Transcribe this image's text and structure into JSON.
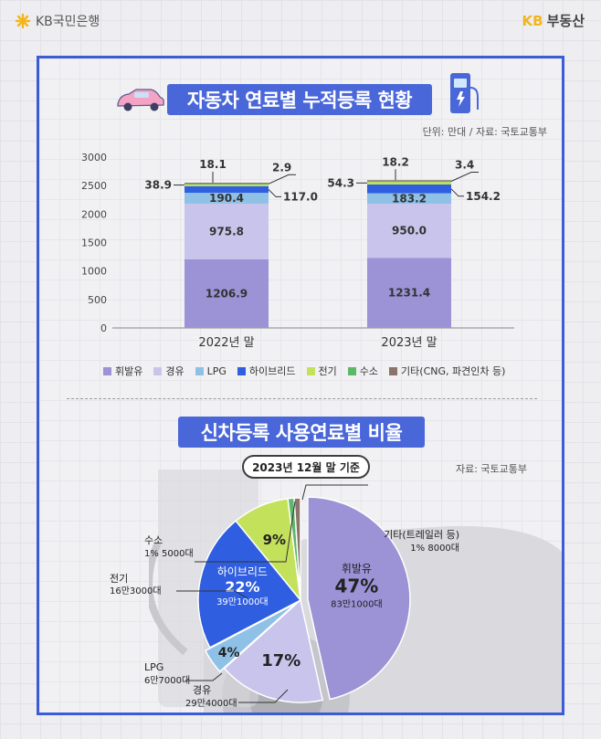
{
  "header": {
    "left_brand": "KB국민은행",
    "right_brand_kb": "KB",
    "right_brand_name": "부동산"
  },
  "colors": {
    "gasoline": "#9b93d6",
    "diesel": "#c9c4ec",
    "lpg": "#8fc1e6",
    "hybrid": "#2f5ee0",
    "electric": "#c4e15c",
    "hydrogen": "#5db86a",
    "other": "#8b7469",
    "accent": "#4a67d9"
  },
  "chart_data": [
    {
      "type": "bar",
      "title": "자동차 연료별 누적등록 현황",
      "unit_note": "단위: 만대 / 자료: 국토교통부",
      "categories": [
        "2022년 말",
        "2023년 말"
      ],
      "stacked": true,
      "ylim": [
        0,
        3000
      ],
      "yticks": [
        "0",
        "500",
        "1000",
        "1500",
        "2000",
        "2500",
        "3000"
      ],
      "grid": false,
      "legend_position": "bottom",
      "series": [
        {
          "name": "휘발유",
          "values": [
            1206.9,
            1231.4
          ],
          "labels": [
            "1206.9",
            "1231.4"
          ]
        },
        {
          "name": "경유",
          "values": [
            975.8,
            950.0
          ],
          "labels": [
            "975.8",
            "950.0"
          ]
        },
        {
          "name": "LPG",
          "values": [
            190.4,
            183.2
          ],
          "labels": [
            "190.4",
            "183.2"
          ]
        },
        {
          "name": "하이브리드",
          "values": [
            117.0,
            154.2
          ],
          "labels": [
            "117.0",
            "154.2"
          ]
        },
        {
          "name": "전기",
          "values": [
            38.9,
            54.3
          ],
          "labels": [
            "38.9",
            "54.3"
          ]
        },
        {
          "name": "수소",
          "values": [
            2.9,
            3.4
          ],
          "labels": [
            "2.9",
            "3.4"
          ]
        },
        {
          "name": "기타(CNG, 파견인차 등)",
          "values": [
            18.1,
            18.2
          ],
          "labels": [
            "18.1",
            "18.2"
          ]
        }
      ]
    },
    {
      "type": "pie",
      "title": "신차등록 사용연료별 비율",
      "as_of": "2023년 12월 말 기준",
      "source": "자료: 국토교통부",
      "slices": [
        {
          "name": "휘발유",
          "percent": 47,
          "percent_label": "47%",
          "count": "83만1000대"
        },
        {
          "name": "경유",
          "percent": 17,
          "percent_label": "17%",
          "count": "29만4000대"
        },
        {
          "name": "LPG",
          "percent": 4,
          "percent_label": "4%",
          "count": "6만7000대"
        },
        {
          "name": "하이브리드",
          "percent": 22,
          "percent_label": "22%",
          "count": "39만1000대"
        },
        {
          "name": "전기",
          "percent": 9,
          "percent_label": "9%",
          "count": "16만3000대"
        },
        {
          "name": "수소",
          "percent": 1,
          "percent_label": "1%",
          "count": "5000대"
        },
        {
          "name": "기타(트레일러 등)",
          "percent": 1,
          "percent_label": "1%",
          "count": "8000대"
        }
      ]
    }
  ]
}
